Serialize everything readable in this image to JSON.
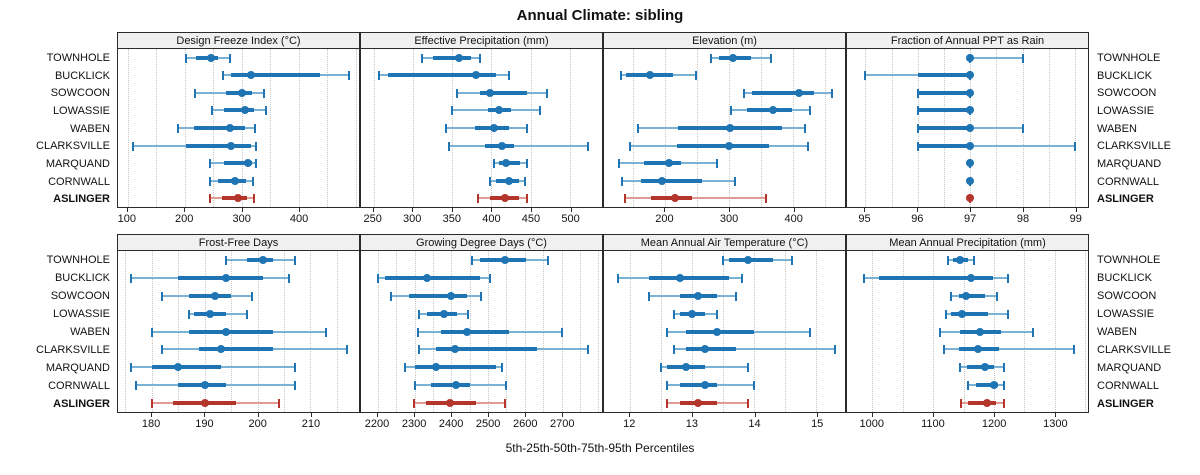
{
  "title": "Annual Climate: sibling",
  "caption": "5th-25th-50th-75th-95th Percentiles",
  "colors": {
    "blue": "#1f74b4",
    "blue_light": "#7ab2d6",
    "red": "#b4352c",
    "red_light": "#e09b93",
    "strip_bg": "#f0f0f0",
    "panel_border": "#2b2b2b",
    "gridline": "#c6c6c6",
    "text": "#111111"
  },
  "stations": [
    "TOWNHOLE",
    "BUCKLICK",
    "SOWCOON",
    "LOWASSIE",
    "WABEN",
    "CLARKSVILLE",
    "MARQUAND",
    "CORNWALL",
    "ASLINGER"
  ],
  "highlight_station": "ASLINGER",
  "chart_data": {
    "type": "dot-interval-trellis",
    "interval_semantics": [
      "p5",
      "p25",
      "p50",
      "p75",
      "p95"
    ],
    "layout": {
      "rows": 2,
      "cols": 4
    },
    "panels": [
      {
        "title": "Design Freeze Index (°C)",
        "xlim": [
          83,
          506
        ],
        "ticks": [
          100,
          200,
          300,
          400
        ],
        "grid_step": 50,
        "intervals": [
          [
            202,
            220,
            246,
            259,
            279
          ],
          [
            267,
            282,
            316,
            438,
            488
          ],
          [
            219,
            272,
            300,
            319,
            339
          ],
          [
            248,
            269,
            306,
            322,
            342
          ],
          [
            188,
            216,
            279,
            306,
            324
          ],
          [
            109,
            202,
            282,
            316,
            326
          ],
          [
            245,
            269,
            312,
            319,
            326
          ],
          [
            244,
            259,
            288,
            307,
            320
          ],
          [
            245,
            266,
            294,
            310,
            322
          ]
        ]
      },
      {
        "title": "Effective Precipitation (mm)",
        "xlim": [
          234,
          541
        ],
        "ticks": [
          250,
          300,
          350,
          400,
          450,
          500
        ],
        "grid_step": 50,
        "intervals": [
          [
            312,
            326,
            359,
            374,
            386
          ],
          [
            257,
            269,
            380,
            406,
            422
          ],
          [
            356,
            385,
            398,
            446,
            471
          ],
          [
            350,
            396,
            410,
            425,
            462
          ],
          [
            342,
            379,
            404,
            423,
            446
          ],
          [
            346,
            392,
            413,
            429,
            523
          ],
          [
            404,
            410,
            419,
            437,
            446
          ],
          [
            398,
            406,
            422,
            435,
            443
          ],
          [
            383,
            398,
            417,
            435,
            446
          ]
        ]
      },
      {
        "title": "Elevation (m)",
        "xlim": [
          105,
          481
        ],
        "ticks": [
          200,
          300,
          400
        ],
        "grid_step": 50,
        "intervals": [
          [
            272,
            285,
            307,
            334,
            365
          ],
          [
            132,
            139,
            177,
            212,
            249
          ],
          [
            323,
            336,
            409,
            432,
            461
          ],
          [
            303,
            328,
            369,
            398,
            427
          ],
          [
            158,
            220,
            302,
            383,
            419
          ],
          [
            146,
            219,
            300,
            362,
            423
          ],
          [
            129,
            167,
            207,
            225,
            281
          ],
          [
            133,
            163,
            196,
            258,
            310
          ],
          [
            138,
            178,
            215,
            243,
            358
          ]
        ]
      },
      {
        "title": "Fraction of Annual PPT as Rain",
        "xlim": [
          94.65,
          99.25
        ],
        "ticks": [
          95,
          96,
          97,
          98,
          99
        ],
        "grid_step": 0.5,
        "intervals": [
          [
            97,
            97,
            97,
            97,
            98
          ],
          [
            95,
            96,
            97,
            97,
            97
          ],
          [
            96,
            96,
            97,
            97,
            97
          ],
          [
            96,
            96,
            97,
            97,
            97
          ],
          [
            96,
            96,
            97,
            97,
            98
          ],
          [
            96,
            96,
            97,
            97,
            99
          ],
          [
            97,
            97,
            97,
            97,
            97
          ],
          [
            97,
            97,
            97,
            97,
            97
          ],
          [
            97,
            97,
            97,
            97,
            97
          ]
        ]
      },
      {
        "title": "Frost-Free Days",
        "xlim": [
          173.6,
          219.2
        ],
        "ticks": [
          180,
          190,
          200,
          210
        ],
        "grid_step": 5,
        "intervals": [
          [
            194,
            198,
            201,
            203,
            207
          ],
          [
            176,
            185,
            194,
            201,
            206
          ],
          [
            182,
            187,
            192,
            195,
            199
          ],
          [
            187,
            188,
            191,
            194,
            198
          ],
          [
            180,
            187,
            194,
            203,
            213
          ],
          [
            182,
            189,
            193,
            203,
            217
          ],
          [
            176,
            180,
            185,
            193,
            207
          ],
          [
            177,
            185,
            190,
            194,
            207
          ],
          [
            180,
            184,
            190,
            196,
            204
          ]
        ]
      },
      {
        "title": "Growing Degree Days (°C)",
        "xlim": [
          2154,
          2810
        ],
        "ticks": [
          2200,
          2300,
          2400,
          2500,
          2600,
          2700
        ],
        "grid_step": 50,
        "intervals": [
          [
            2455,
            2477,
            2546,
            2604,
            2662
          ],
          [
            2200,
            2220,
            2335,
            2477,
            2504
          ],
          [
            2235,
            2286,
            2400,
            2442,
            2480
          ],
          [
            2313,
            2335,
            2381,
            2415,
            2444
          ],
          [
            2308,
            2371,
            2442,
            2557,
            2701
          ],
          [
            2313,
            2357,
            2411,
            2633,
            2772
          ],
          [
            2275,
            2300,
            2359,
            2522,
            2537
          ],
          [
            2301,
            2344,
            2412,
            2451,
            2548
          ],
          [
            2298,
            2331,
            2395,
            2468,
            2546
          ]
        ]
      },
      {
        "title": "Mean Annual Air Temperature (°C)",
        "xlim": [
          11.58,
          15.46
        ],
        "ticks": [
          12,
          13,
          14,
          15
        ],
        "grid_step": 0.5,
        "intervals": [
          [
            13.5,
            13.6,
            13.9,
            14.3,
            14.6
          ],
          [
            11.8,
            12.3,
            12.8,
            13.6,
            13.8
          ],
          [
            12.3,
            12.8,
            13.1,
            13.4,
            13.7
          ],
          [
            12.7,
            12.8,
            13.0,
            13.2,
            13.4
          ],
          [
            12.6,
            12.9,
            13.4,
            14.0,
            14.9
          ],
          [
            12.7,
            12.9,
            13.2,
            13.7,
            15.3
          ],
          [
            12.5,
            12.6,
            12.9,
            13.2,
            13.9
          ],
          [
            12.6,
            12.8,
            13.2,
            13.4,
            14.0
          ],
          [
            12.6,
            12.8,
            13.1,
            13.4,
            13.9
          ]
        ]
      },
      {
        "title": "Mean Annual Precipitation (mm)",
        "xlim": [
          958,
          1355
        ],
        "ticks": [
          1000,
          1100,
          1200,
          1300
        ],
        "grid_step": 50,
        "intervals": [
          [
            1124,
            1132,
            1144,
            1157,
            1168
          ],
          [
            986,
            1010,
            1162,
            1198,
            1223
          ],
          [
            1130,
            1142,
            1154,
            1185,
            1205
          ],
          [
            1121,
            1130,
            1148,
            1190,
            1223
          ],
          [
            1112,
            1144,
            1177,
            1212,
            1265
          ],
          [
            1117,
            1143,
            1174,
            1208,
            1332
          ],
          [
            1144,
            1155,
            1185,
            1200,
            1216
          ],
          [
            1157,
            1170,
            1200,
            1206,
            1216
          ],
          [
            1146,
            1157,
            1188,
            1204,
            1217
          ]
        ]
      }
    ]
  }
}
